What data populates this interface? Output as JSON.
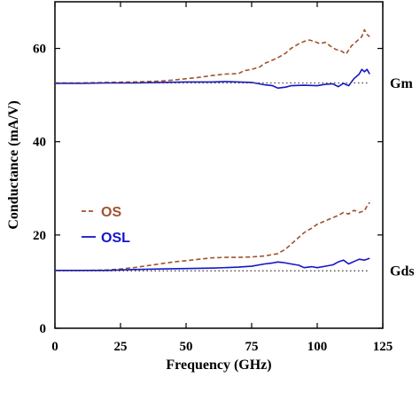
{
  "chart_data": {
    "type": "line",
    "xlabel": "Frequency (GHz)",
    "ylabel": "Conductance (mA/V)",
    "xlim": [
      0,
      125
    ],
    "ylim": [
      0,
      70
    ],
    "xticks": [
      0,
      25,
      50,
      75,
      100,
      125
    ],
    "yticks": [
      0,
      20,
      40,
      60
    ],
    "grid": false,
    "legend_position": "left-middle",
    "annotations": [
      {
        "text": "Gm",
        "y": 52.5
      },
      {
        "text": "Gds",
        "y": 12.3
      }
    ],
    "series": [
      {
        "name": "OS",
        "style": "dashed",
        "color": "#a0522d",
        "group": "Gm",
        "x": [
          0,
          10,
          20,
          30,
          40,
          45,
          50,
          55,
          60,
          65,
          70,
          72,
          75,
          78,
          80,
          83,
          85,
          88,
          90,
          93,
          95,
          97,
          99,
          101,
          103,
          105,
          107,
          109,
          111,
          113,
          115,
          117,
          118,
          119,
          120
        ],
        "y": [
          52.6,
          52.6,
          52.7,
          52.8,
          53.0,
          53.2,
          53.5,
          53.8,
          54.2,
          54.5,
          54.6,
          55.2,
          55.5,
          56.0,
          56.8,
          57.5,
          58.0,
          59.0,
          60.0,
          61.0,
          61.5,
          61.8,
          61.5,
          61.0,
          61.3,
          60.5,
          59.8,
          59.5,
          58.8,
          60.5,
          61.5,
          62.5,
          64.0,
          63.0,
          62.5
        ]
      },
      {
        "name": "OSL",
        "style": "solid",
        "color": "#1515c8",
        "group": "Gm",
        "x": [
          0,
          10,
          20,
          30,
          40,
          50,
          60,
          65,
          70,
          75,
          80,
          83,
          85,
          88,
          90,
          95,
          100,
          103,
          106,
          108,
          110,
          112,
          114,
          116,
          117,
          118,
          119,
          120
        ],
        "y": [
          52.5,
          52.5,
          52.6,
          52.6,
          52.7,
          52.8,
          52.8,
          52.9,
          52.8,
          52.7,
          52.2,
          52.0,
          51.5,
          51.7,
          52.0,
          52.1,
          52.0,
          52.3,
          52.4,
          51.8,
          52.5,
          52.0,
          53.5,
          54.5,
          55.5,
          55.0,
          55.5,
          54.5
        ]
      },
      {
        "name": "",
        "style": "dotted",
        "color": "#444444",
        "group": "Gm",
        "x": [
          0,
          120
        ],
        "y": [
          52.6,
          52.6
        ]
      },
      {
        "name": "OS",
        "style": "dashed",
        "color": "#a0522d",
        "group": "Gds",
        "x": [
          0,
          10,
          20,
          25,
          30,
          35,
          40,
          45,
          50,
          55,
          60,
          65,
          70,
          75,
          80,
          85,
          88,
          90,
          93,
          95,
          98,
          100,
          103,
          105,
          108,
          110,
          112,
          114,
          116,
          118,
          119,
          120
        ],
        "y": [
          12.4,
          12.4,
          12.5,
          12.7,
          13.0,
          13.4,
          13.8,
          14.2,
          14.5,
          14.8,
          15.1,
          15.2,
          15.2,
          15.3,
          15.5,
          16.0,
          17.0,
          18.0,
          19.5,
          20.5,
          21.5,
          22.3,
          23.0,
          23.5,
          24.2,
          24.8,
          24.5,
          25.3,
          24.8,
          25.2,
          26.2,
          27.0
        ]
      },
      {
        "name": "OSL",
        "style": "solid",
        "color": "#1515c8",
        "group": "Gds",
        "x": [
          0,
          10,
          20,
          25,
          30,
          40,
          50,
          60,
          70,
          75,
          80,
          83,
          85,
          87,
          90,
          93,
          95,
          98,
          100,
          103,
          106,
          108,
          110,
          112,
          114,
          116,
          118,
          120
        ],
        "y": [
          12.4,
          12.4,
          12.4,
          12.5,
          12.6,
          12.7,
          12.8,
          12.9,
          13.1,
          13.3,
          13.8,
          14.0,
          14.2,
          14.1,
          13.8,
          13.5,
          13.0,
          13.2,
          13.0,
          13.3,
          13.6,
          14.2,
          14.6,
          13.8,
          14.3,
          14.8,
          14.6,
          15.0
        ]
      },
      {
        "name": "",
        "style": "dotted",
        "color": "#444444",
        "group": "Gds",
        "x": [
          0,
          120
        ],
        "y": [
          12.3,
          12.3
        ]
      }
    ],
    "legend": [
      {
        "label": "OS",
        "style": "dashed",
        "color": "#a0522d"
      },
      {
        "label": "OSL",
        "style": "solid",
        "color": "#1515c8"
      }
    ]
  }
}
